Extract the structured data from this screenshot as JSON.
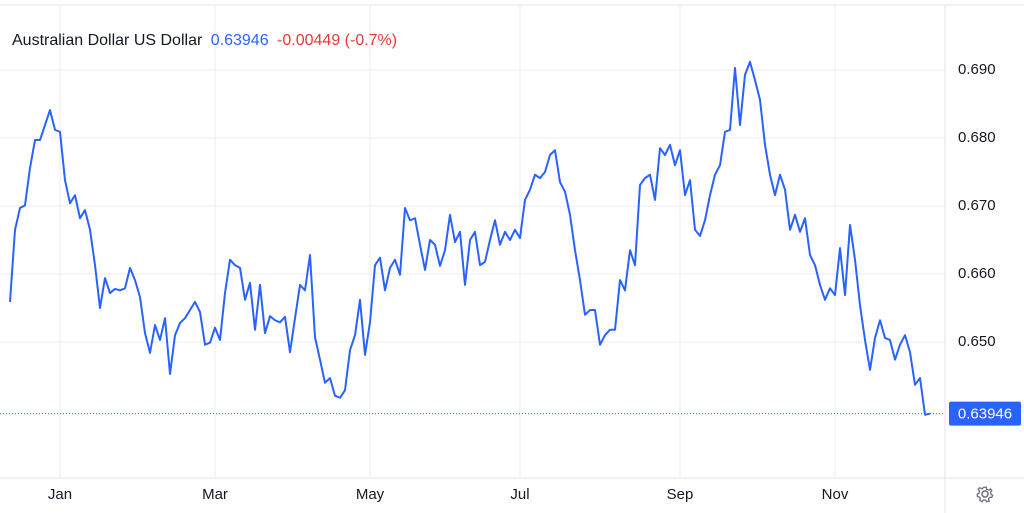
{
  "chart_data": {
    "type": "line",
    "title": "Australian Dollar US Dollar",
    "price": 0.63946,
    "change": "-0.00449 (-0.7%)",
    "color": "#2962ff",
    "price_color": "#2962ff",
    "change_color": "#e53935",
    "categories": [
      null,
      null,
      null,
      null,
      null,
      null,
      null,
      null,
      null,
      null,
      "Jan",
      null,
      null,
      null,
      null,
      null,
      null,
      null,
      null,
      null,
      null,
      null,
      null,
      null,
      null,
      null,
      null,
      null,
      null,
      null,
      null,
      null,
      null,
      null,
      null,
      null,
      null,
      null,
      null,
      null,
      null,
      "Mar",
      null,
      null,
      null,
      null,
      null,
      null,
      null,
      null,
      null,
      null,
      null,
      null,
      null,
      null,
      null,
      null,
      null,
      null,
      null,
      null,
      null,
      null,
      null,
      null,
      null,
      null,
      null,
      null,
      null,
      null,
      "May",
      null,
      null,
      null,
      null,
      null,
      null,
      null,
      null,
      null,
      null,
      null,
      null,
      null,
      null,
      null,
      null,
      null,
      null,
      null,
      null,
      null,
      null,
      null,
      null,
      null,
      null,
      null,
      null,
      null,
      "Jul",
      null,
      null,
      null,
      null,
      null,
      null,
      null,
      null,
      null,
      null,
      null,
      null,
      null,
      null,
      null,
      null,
      null,
      null,
      null,
      null,
      null,
      null,
      null,
      null,
      null,
      null,
      null,
      null,
      null,
      null,
      null,
      "Sep",
      null,
      null,
      null,
      null,
      null,
      null,
      null,
      null,
      null,
      null,
      null,
      null,
      null,
      null,
      null,
      null,
      null,
      null,
      null,
      null,
      null,
      null,
      null,
      null,
      null,
      null,
      null,
      null,
      null,
      null,
      "Nov",
      null,
      null,
      null,
      null,
      null,
      null,
      null,
      null,
      null,
      null,
      null,
      null,
      null,
      null,
      null,
      null,
      null,
      null,
      null
    ],
    "values": [
      0.6559,
      0.6665,
      0.6697,
      0.6701,
      0.6756,
      0.6797,
      0.6797,
      0.6819,
      0.6841,
      0.6812,
      0.6809,
      0.6738,
      0.6704,
      0.6716,
      0.6682,
      0.6694,
      0.6665,
      0.6613,
      0.655,
      0.6594,
      0.6572,
      0.6578,
      0.6576,
      0.6579,
      0.6609,
      0.6591,
      0.6566,
      0.6513,
      0.6484,
      0.6525,
      0.6503,
      0.6535,
      0.6453,
      0.651,
      0.6528,
      0.6535,
      0.6547,
      0.6559,
      0.6544,
      0.6496,
      0.6499,
      0.6521,
      0.6503,
      0.6572,
      0.6621,
      0.6613,
      0.6609,
      0.6562,
      0.6587,
      0.6518,
      0.6584,
      0.6513,
      0.6538,
      0.6532,
      0.6529,
      0.6537,
      0.6485,
      0.6535,
      0.6584,
      0.6576,
      0.6628,
      0.6507,
      0.6474,
      0.644,
      0.6447,
      0.6421,
      0.6418,
      0.6429,
      0.6488,
      0.651,
      0.6562,
      0.6481,
      0.6529,
      0.6613,
      0.6624,
      0.6576,
      0.6609,
      0.6621,
      0.6599,
      0.6697,
      0.6679,
      0.6682,
      0.6643,
      0.6606,
      0.665,
      0.6643,
      0.6612,
      0.6635,
      0.6687,
      0.6647,
      0.6662,
      0.6584,
      0.665,
      0.6662,
      0.6613,
      0.6618,
      0.665,
      0.6679,
      0.6643,
      0.6662,
      0.665,
      0.6665,
      0.6653,
      0.6709,
      0.6724,
      0.6746,
      0.6741,
      0.675,
      0.6775,
      0.6782,
      0.6735,
      0.6721,
      0.6687,
      0.6635,
      0.6591,
      0.654,
      0.6547,
      0.6547,
      0.6496,
      0.651,
      0.6518,
      0.6518,
      0.6591,
      0.6576,
      0.6635,
      0.6613,
      0.6731,
      0.6741,
      0.6746,
      0.6709,
      0.6785,
      0.6775,
      0.679,
      0.676,
      0.6782,
      0.6716,
      0.6738,
      0.6665,
      0.6656,
      0.6679,
      0.6716,
      0.6746,
      0.676,
      0.6809,
      0.6812,
      0.6903,
      0.6819,
      0.6893,
      0.6912,
      0.6885,
      0.6856,
      0.679,
      0.6746,
      0.6716,
      0.6746,
      0.6724,
      0.6665,
      0.6687,
      0.6662,
      0.6682,
      0.6628,
      0.6613,
      0.6584,
      0.6562,
      0.6579,
      0.6569,
      0.6638,
      0.6569,
      0.6672,
      0.6621,
      0.6554,
      0.6503,
      0.6459,
      0.6506,
      0.6532,
      0.6506,
      0.6503,
      0.6474,
      0.6496,
      0.651,
      0.6485,
      0.6437,
      0.6447,
      0.6393,
      0.63946
    ],
    "ylim": [
      0.63,
      0.7
    ],
    "yticks": [
      {
        "value": 0.65,
        "label": "0.650"
      },
      {
        "value": 0.66,
        "label": "0.660"
      },
      {
        "value": 0.67,
        "label": "0.670"
      },
      {
        "value": 0.68,
        "label": "0.680"
      },
      {
        "value": 0.69,
        "label": "0.690"
      }
    ],
    "grid": true
  }
}
